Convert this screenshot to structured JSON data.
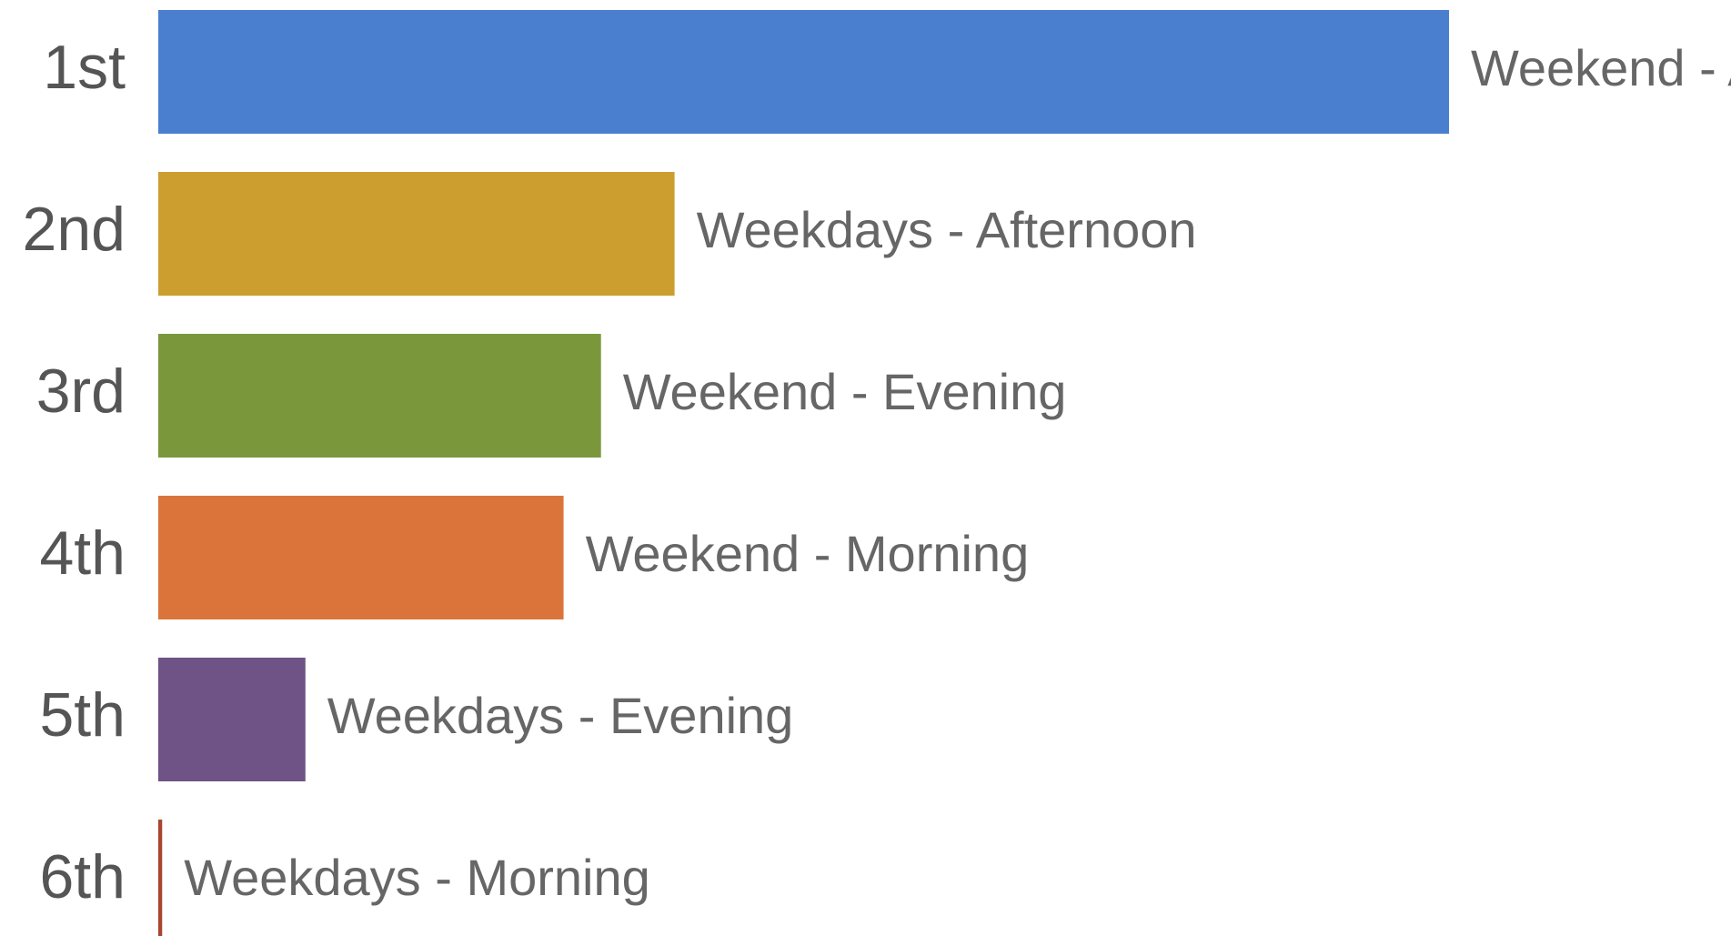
{
  "chart_data": {
    "type": "bar",
    "orientation": "horizontal",
    "categories": [
      "1st",
      "2nd",
      "3rd",
      "4th",
      "5th",
      "6th"
    ],
    "labels": [
      "Weekend - Afternoon",
      "Weekdays - Afternoon",
      "Weekend - Evening",
      "Weekend - Morning",
      "Weekdays - Evening",
      "Weekdays - Morning"
    ],
    "values": [
      100,
      40,
      34.3,
      31.4,
      11.4,
      0.3
    ],
    "colors": [
      "#4a7fcf",
      "#cb9e2f",
      "#7a983b",
      "#db743a",
      "#6f5286",
      "#a8452f"
    ],
    "xlim": [
      0,
      100
    ]
  }
}
